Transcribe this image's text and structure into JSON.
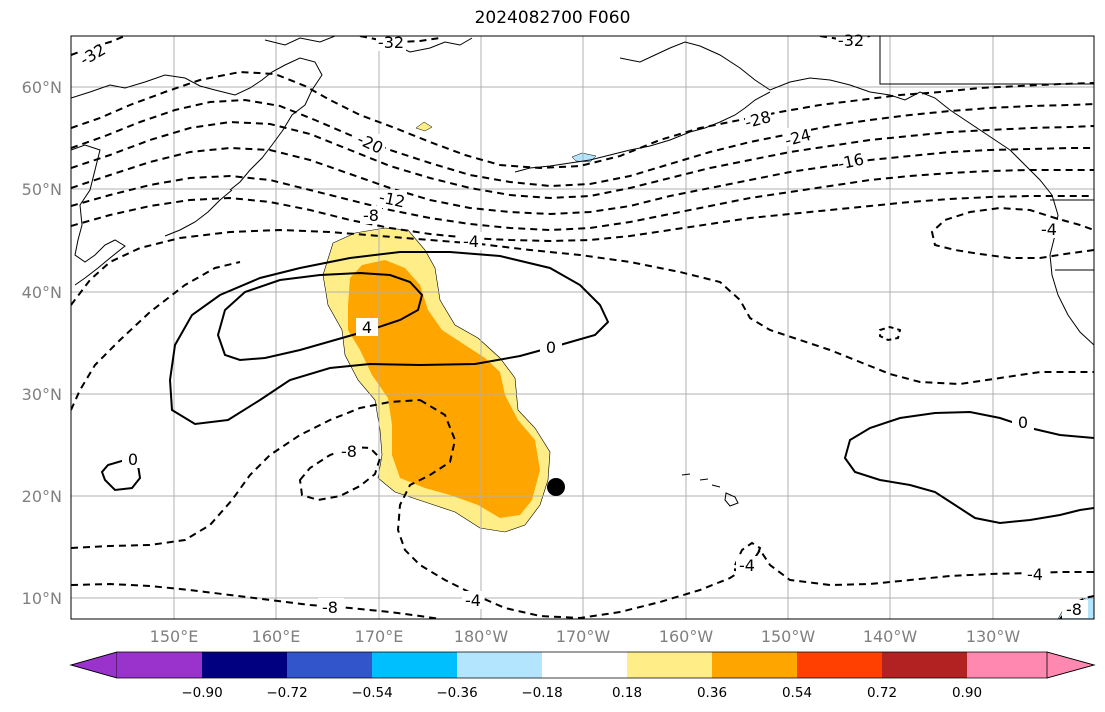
{
  "title": "2024082700 F060",
  "lat_labels": [
    "60°N",
    "50°N",
    "40°N",
    "30°N",
    "20°N",
    "10°N"
  ],
  "lon_labels": [
    "150°E",
    "160°E",
    "170°E",
    "180°W",
    "170°W",
    "160°W",
    "150°W",
    "140°W",
    "130°W"
  ],
  "contour_labels": [
    "-32",
    "-32",
    "-32",
    "-28",
    "-24",
    "-20",
    "-16",
    "-12",
    "-8",
    "-4",
    "0",
    "4",
    "0",
    "-8",
    "0",
    "-4",
    "-4",
    "-4",
    "-8",
    "-8",
    "-4"
  ],
  "colorbar": {
    "colors": [
      "#9933cc",
      "#000080",
      "#3355cc",
      "#00bfff",
      "#b3e5ff",
      "#ffffff",
      "#ffee88",
      "#ffa500",
      "#ff4000",
      "#b22222",
      "#ff88b0"
    ],
    "tick_labels": [
      "−0.90",
      "−0.72",
      "−0.54",
      "−0.36",
      "−0.18",
      "0.18",
      "0.36",
      "0.54",
      "0.72",
      "0.90"
    ]
  },
  "marker": "storm-center-dot"
}
